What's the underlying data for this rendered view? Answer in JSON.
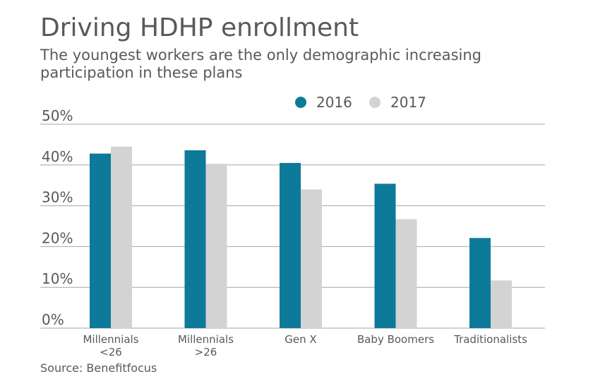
{
  "title": "Driving HDHP enrollment",
  "subtitle": "The youngest workers are the only demographic increasing participation in these plans",
  "source": "Source: Benefitfocus",
  "colors": {
    "series_2016": "#0d7a9a",
    "series_2017": "#d3d3d4",
    "gridline": "#a6a6a6",
    "text": "#595959"
  },
  "chart_data": {
    "type": "bar",
    "title": "Driving HDHP enrollment",
    "subtitle": "The youngest workers are the only demographic increasing participation in these plans",
    "xlabel": "",
    "ylabel": "",
    "ylim": [
      0,
      50
    ],
    "yticks": [
      0,
      10,
      20,
      30,
      40,
      50
    ],
    "ytick_labels": [
      "0%",
      "10%",
      "20%",
      "30%",
      "40%",
      "50%"
    ],
    "grid": true,
    "legend_position": "top-right",
    "categories": [
      [
        "Millennials",
        "<26"
      ],
      [
        "Millennials",
        ">26"
      ],
      [
        "Gen X"
      ],
      [
        "Baby Boomers"
      ],
      [
        "Traditionalists"
      ]
    ],
    "series": [
      {
        "name": "2016",
        "color": "#0d7a9a",
        "values": [
          42.8,
          43.6,
          40.5,
          35.4,
          22.1
        ]
      },
      {
        "name": "2017",
        "color": "#d3d3d4",
        "values": [
          44.5,
          40.3,
          34.0,
          26.7,
          11.7
        ]
      }
    ]
  }
}
